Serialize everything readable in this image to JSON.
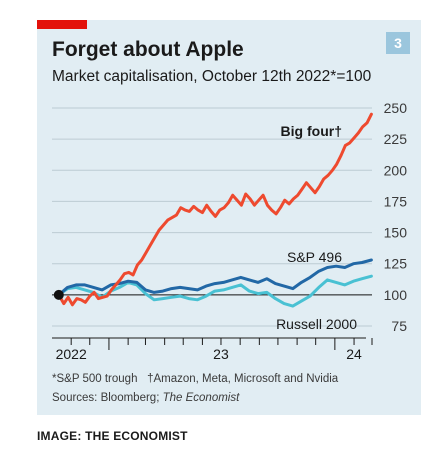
{
  "badge": "3",
  "colors": {
    "accent_red": "#e3120b",
    "big_four": "#ee4a2f",
    "sp496": "#2268a6",
    "russell": "#49c1d3",
    "background": "#e1edf3"
  },
  "footnote_1": "*S&P 500 trough",
  "footnote_2": "†Amazon, Meta, Microsoft and Nvidia",
  "sources_label": "Sources: Bloomberg; ",
  "sources_italic": "The Economist",
  "credit": "IMAGE: THE ECONOMIST",
  "chart_data": {
    "type": "line",
    "title": "Forget about Apple",
    "subtitle": "Market capitalisation, October 12th 2022*=100",
    "ylim": [
      75,
      250
    ],
    "yticks": [
      75,
      100,
      125,
      150,
      175,
      200,
      225,
      250
    ],
    "xlim": [
      "2022-10-01",
      "2024-03-01"
    ],
    "xticks": [
      {
        "label": "2022",
        "date": "2022-11-01"
      },
      {
        "label": "23",
        "date": "2023-07-01"
      },
      {
        "label": "24",
        "date": "2024-02-01"
      }
    ],
    "start_point": {
      "x": "2022-10-12",
      "y": 100
    },
    "grid": true,
    "series": [
      {
        "name": "Big four†",
        "color": "#ee4a2f",
        "x": [
          "2022-10-12",
          "2022-10-20",
          "2022-10-27",
          "2022-11-03",
          "2022-11-10",
          "2022-11-17",
          "2022-11-24",
          "2022-12-01",
          "2022-12-08",
          "2022-12-15",
          "2022-12-22",
          "2022-12-29",
          "2023-01-05",
          "2023-01-12",
          "2023-01-19",
          "2023-01-26",
          "2023-02-02",
          "2023-02-09",
          "2023-02-16",
          "2023-02-23",
          "2023-03-02",
          "2023-03-09",
          "2023-03-16",
          "2023-03-23",
          "2023-03-30",
          "2023-04-06",
          "2023-04-13",
          "2023-04-20",
          "2023-04-27",
          "2023-05-04",
          "2023-05-11",
          "2023-05-18",
          "2023-05-25",
          "2023-06-01",
          "2023-06-08",
          "2023-06-15",
          "2023-06-22",
          "2023-06-29",
          "2023-07-06",
          "2023-07-13",
          "2023-07-20",
          "2023-07-27",
          "2023-08-03",
          "2023-08-10",
          "2023-08-17",
          "2023-08-24",
          "2023-08-31",
          "2023-09-07",
          "2023-09-14",
          "2023-09-21",
          "2023-09-28",
          "2023-10-05",
          "2023-10-12",
          "2023-10-19",
          "2023-10-26",
          "2023-11-02",
          "2023-11-09",
          "2023-11-16",
          "2023-11-23",
          "2023-11-30",
          "2023-12-07",
          "2023-12-14",
          "2023-12-21",
          "2023-12-28",
          "2024-01-04",
          "2024-01-11",
          "2024-01-18",
          "2024-01-25",
          "2024-02-01",
          "2024-02-08",
          "2024-02-15",
          "2024-02-22",
          "2024-02-29"
        ],
        "values": [
          100,
          93,
          98,
          92,
          97,
          96,
          94,
          99,
          102,
          97,
          98,
          99,
          104,
          108,
          112,
          117,
          118,
          116,
          124,
          128,
          134,
          140,
          146,
          152,
          156,
          160,
          162,
          164,
          170,
          168,
          167,
          171,
          168,
          166,
          172,
          167,
          163,
          168,
          170,
          174,
          180,
          176,
          172,
          181,
          177,
          172,
          176,
          180,
          172,
          168,
          165,
          170,
          176,
          173,
          177,
          180,
          185,
          190,
          186,
          182,
          187,
          193,
          196,
          200,
          205,
          212,
          220,
          222,
          226,
          230,
          235,
          238,
          245
        ]
      },
      {
        "name": "S&P 496",
        "color": "#2268a6",
        "x": [
          "2022-10-12",
          "2022-10-26",
          "2022-11-09",
          "2022-11-23",
          "2022-12-07",
          "2022-12-21",
          "2023-01-04",
          "2023-01-18",
          "2023-02-01",
          "2023-02-15",
          "2023-03-01",
          "2023-03-15",
          "2023-03-29",
          "2023-04-12",
          "2023-04-26",
          "2023-05-10",
          "2023-05-24",
          "2023-06-07",
          "2023-06-21",
          "2023-07-05",
          "2023-07-19",
          "2023-08-02",
          "2023-08-16",
          "2023-08-30",
          "2023-09-13",
          "2023-09-27",
          "2023-10-11",
          "2023-10-25",
          "2023-11-08",
          "2023-11-22",
          "2023-12-06",
          "2023-12-20",
          "2024-01-03",
          "2024-01-17",
          "2024-01-31",
          "2024-02-14",
          "2024-02-29"
        ],
        "values": [
          100,
          106,
          108,
          108,
          106,
          104,
          108,
          109,
          111,
          110,
          104,
          102,
          103,
          105,
          106,
          105,
          104,
          107,
          109,
          110,
          112,
          114,
          112,
          110,
          113,
          109,
          107,
          105,
          110,
          114,
          119,
          122,
          123,
          122,
          125,
          126,
          128
        ]
      },
      {
        "name": "Russell 2000",
        "color": "#49c1d3",
        "x": [
          "2022-10-12",
          "2022-10-26",
          "2022-11-09",
          "2022-11-23",
          "2022-12-07",
          "2022-12-21",
          "2023-01-04",
          "2023-01-18",
          "2023-02-01",
          "2023-02-15",
          "2023-03-01",
          "2023-03-15",
          "2023-03-29",
          "2023-04-12",
          "2023-04-26",
          "2023-05-10",
          "2023-05-24",
          "2023-06-07",
          "2023-06-21",
          "2023-07-05",
          "2023-07-19",
          "2023-08-02",
          "2023-08-16",
          "2023-08-30",
          "2023-09-13",
          "2023-09-27",
          "2023-10-11",
          "2023-10-25",
          "2023-11-08",
          "2023-11-22",
          "2023-12-06",
          "2023-12-20",
          "2024-01-03",
          "2024-01-17",
          "2024-01-31",
          "2024-02-14",
          "2024-02-29"
        ],
        "values": [
          100,
          105,
          106,
          104,
          102,
          98,
          103,
          106,
          110,
          108,
          101,
          96,
          97,
          98,
          99,
          97,
          96,
          99,
          103,
          104,
          106,
          108,
          103,
          101,
          102,
          97,
          93,
          91,
          95,
          99,
          106,
          112,
          110,
          108,
          111,
          113,
          115
        ]
      }
    ]
  }
}
